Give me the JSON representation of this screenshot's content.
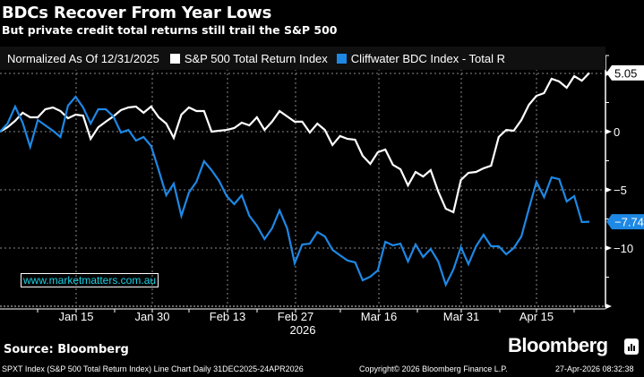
{
  "header": {
    "title": "BDCs Recover From Year Lows",
    "subtitle": "But private credit total returns still trail the S&P 500"
  },
  "legend": {
    "normalized_label": "Normalized As Of 12/31/2025",
    "items": [
      {
        "label": "S&P 500 Total Return Index",
        "color": "#ffffff"
      },
      {
        "label": "Cliffwater BDC Index - Total R",
        "color": "#1e88e5"
      }
    ]
  },
  "watermark": "www.marketmatters.com.au",
  "footer": {
    "source": "Source: Bloomberg",
    "brand": "Bloomberg",
    "description": "SPXT Index (S&P 500 Total Return Index) Line Chart Daily 31DEC2025-24APR2026",
    "copyright": "Copyright© 2026 Bloomberg Finance L.P.",
    "timestamp": "27-Apr-2026 08:32:38"
  },
  "chart_data": {
    "type": "line",
    "title": "BDCs Recover From Year Lows",
    "subtitle": "But private credit total returns still trail the S&P 500",
    "xlabel": "2026",
    "ylabel": "",
    "x_ticks": [
      "Jan 15",
      "Jan 30",
      "Feb 13",
      "Feb 27",
      "Mar 16",
      "Mar 31",
      "Apr 15"
    ],
    "x_year_label": "2026",
    "x_range": [
      "2025-12-31",
      "2026-04-24"
    ],
    "y_ticks": [
      5,
      0,
      -5,
      -10
    ],
    "ylim": [
      -15,
      6.5
    ],
    "grid": true,
    "legend_position": "top",
    "last_value_labels": [
      {
        "series": "S&P 500 Total Return Index",
        "value": "5.05",
        "bg": "#ffffff",
        "fg": "#000000"
      },
      {
        "series": "Cliffwater BDC Index - Total R",
        "value": "-7.74",
        "bg": "#1e88e5",
        "fg": "#ffffff"
      }
    ],
    "series": [
      {
        "name": "S&P 500 Total Return Index",
        "color": "#ffffff",
        "values": [
          0,
          0.38,
          0.92,
          1.62,
          1.23,
          1.23,
          1.92,
          2.08,
          1.77,
          1.15,
          1.46,
          1.38,
          -0.62,
          0.38,
          0.85,
          1.31,
          1.85,
          2.08,
          2.15,
          1.62,
          2.15,
          1.23,
          0.69,
          -0.54,
          1.46,
          2.08,
          1.77,
          1.77,
          0.0,
          0.08,
          0.15,
          0.31,
          0.77,
          0.54,
          1.23,
          0.15,
          0.85,
          1.77,
          1.31,
          0.85,
          0.85,
          -0.08,
          0.69,
          0.15,
          -1.15,
          -0.38,
          -0.62,
          -0.69,
          -2.08,
          -2.77,
          -1.77,
          -1.54,
          -2.85,
          -3.23,
          -4.62,
          -3.46,
          -3.85,
          -3.31,
          -5.15,
          -6.62,
          -6.92,
          -4.15,
          -3.54,
          -3.46,
          -3.15,
          -2.92,
          -0.46,
          0.15,
          0.08,
          1.0,
          2.31,
          3.08,
          3.31,
          4.54,
          4.31,
          3.77,
          4.77,
          4.38,
          5.05
        ]
      },
      {
        "name": "Cliffwater BDC Index - Total R",
        "color": "#1e88e5",
        "values": [
          0,
          0.69,
          2.15,
          0.77,
          -1.31,
          1.0,
          0.54,
          0.08,
          -0.46,
          2.23,
          3.0,
          2.08,
          0.69,
          1.92,
          1.92,
          1.31,
          -0.08,
          0.15,
          -0.77,
          -0.46,
          -1.23,
          -3.31,
          -5.46,
          -4.46,
          -7.23,
          -5.23,
          -4.31,
          -2.54,
          -3.31,
          -4.23,
          -5.54,
          -6.23,
          -5.46,
          -7.23,
          -8.08,
          -9.23,
          -8.31,
          -6.77,
          -8.31,
          -11.31,
          -9.69,
          -9.62,
          -8.62,
          -9.0,
          -10.15,
          -10.62,
          -11.08,
          -11.23,
          -12.77,
          -12.46,
          -11.92,
          -9.46,
          -9.77,
          -9.62,
          -11.15,
          -9.69,
          -10.77,
          -10.08,
          -11.15,
          -13.15,
          -11.85,
          -9.92,
          -11.38,
          -9.85,
          -8.85,
          -9.85,
          -9.85,
          -10.54,
          -10.0,
          -9.0,
          -6.62,
          -4.31,
          -5.62,
          -3.92,
          -4.08,
          -6.0,
          -5.54,
          -7.77,
          -7.74
        ]
      }
    ]
  }
}
